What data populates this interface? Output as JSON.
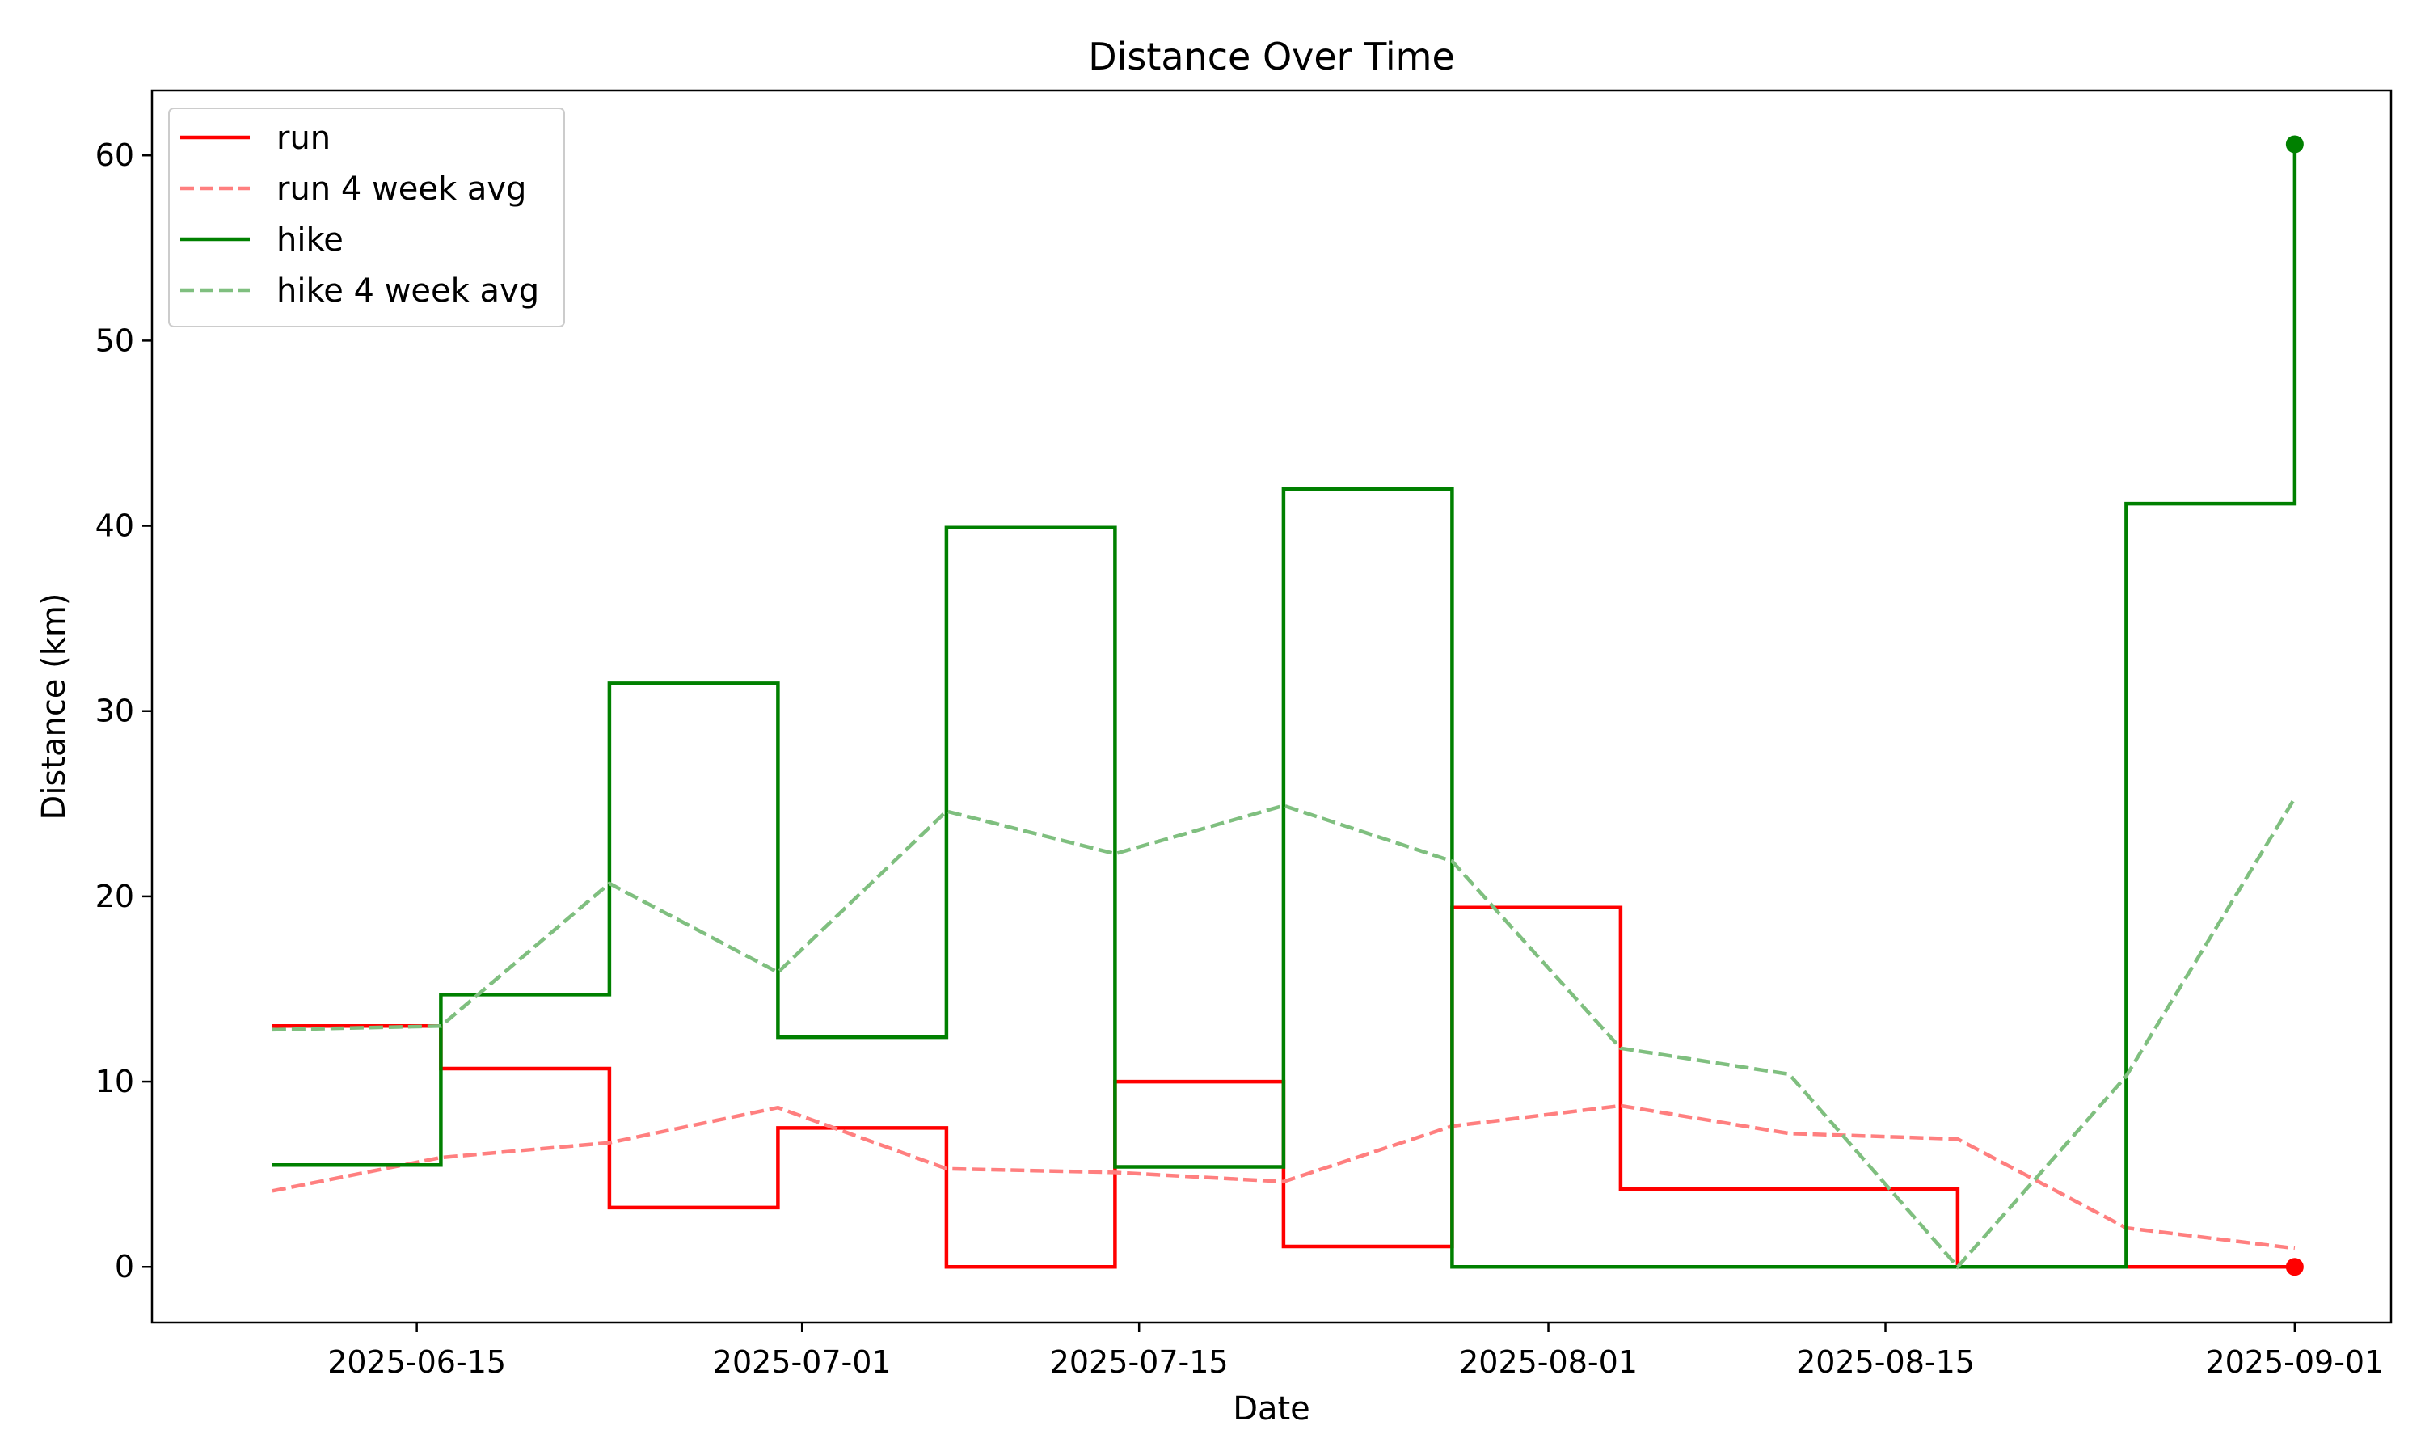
{
  "chart_data": {
    "type": "line",
    "title": "Distance Over Time",
    "xlabel": "Date",
    "ylabel": "Distance (km)",
    "x_ticks": [
      "2025-06-15",
      "2025-07-01",
      "2025-07-15",
      "2025-08-01",
      "2025-08-15",
      "2025-09-01"
    ],
    "y_ticks": [
      0,
      10,
      20,
      30,
      40,
      50,
      60
    ],
    "xlim": [
      "2025-06-04",
      "2025-09-05"
    ],
    "ylim": [
      -3,
      63.5
    ],
    "grid": false,
    "legend_position": "top-left",
    "x": [
      "2025-06-09",
      "2025-06-16",
      "2025-06-23",
      "2025-06-30",
      "2025-07-07",
      "2025-07-14",
      "2025-07-21",
      "2025-07-28",
      "2025-08-04",
      "2025-08-11",
      "2025-08-18",
      "2025-08-25",
      "2025-09-01"
    ],
    "series": [
      {
        "name": "run",
        "style": "step",
        "color": "#ff0000",
        "values": [
          13.0,
          10.7,
          3.2,
          7.5,
          0.0,
          10.0,
          1.1,
          19.4,
          4.2,
          4.2,
          0.0,
          0.0,
          0.0
        ],
        "end_marker": true
      },
      {
        "name": "run 4 week avg",
        "style": "dashed",
        "color": "#ff7f7f",
        "values": [
          4.1,
          5.9,
          6.7,
          8.6,
          5.3,
          5.1,
          4.6,
          7.6,
          8.7,
          7.2,
          6.9,
          2.1,
          1.0
        ]
      },
      {
        "name": "hike",
        "style": "step",
        "color": "#008000",
        "values": [
          5.5,
          14.7,
          31.5,
          12.4,
          39.9,
          5.4,
          42.0,
          0.0,
          0.0,
          0.0,
          0.0,
          41.2,
          60.6
        ],
        "end_marker": true
      },
      {
        "name": "hike 4 week avg",
        "style": "dashed",
        "color": "#7fbf7f",
        "values": [
          12.8,
          13.0,
          20.7,
          15.9,
          24.6,
          22.3,
          24.9,
          21.9,
          11.8,
          10.4,
          0.0,
          10.3,
          25.3
        ]
      }
    ]
  }
}
